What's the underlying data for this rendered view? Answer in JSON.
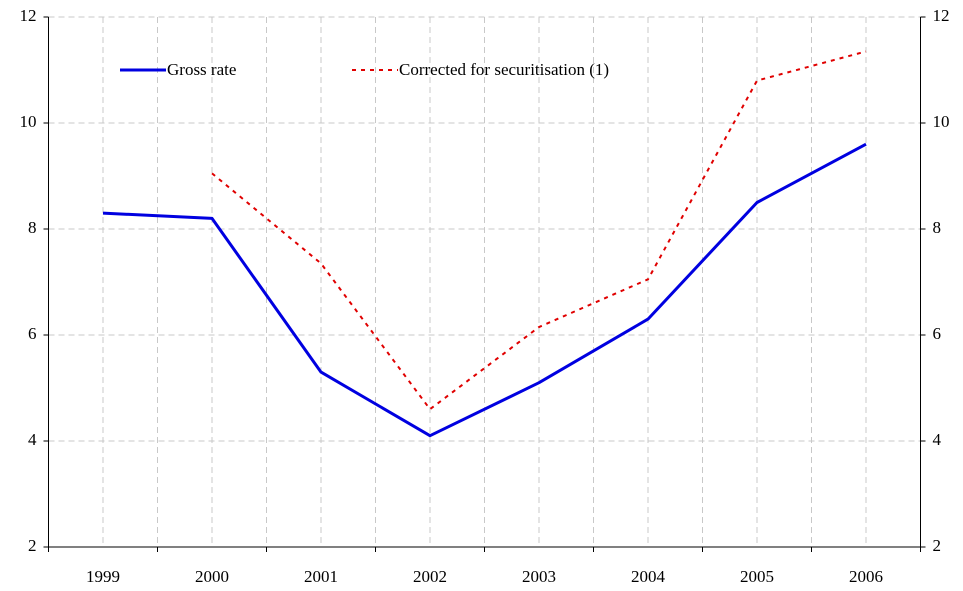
{
  "chart_data": {
    "type": "line",
    "categories": [
      "1999",
      "2000",
      "2001",
      "2002",
      "2003",
      "2004",
      "2005",
      "2006"
    ],
    "series": [
      {
        "name": "Gross rate",
        "color": "#0000e0",
        "style": "solid",
        "values": [
          8.3,
          8.2,
          5.3,
          4.1,
          5.1,
          6.3,
          8.5,
          9.6
        ]
      },
      {
        "name": "Corrected for securitisation (1)",
        "color": "#e00000",
        "style": "dotted",
        "values": [
          null,
          9.05,
          7.35,
          4.6,
          6.15,
          7.05,
          10.8,
          11.35
        ]
      }
    ],
    "ylim": [
      2,
      12
    ],
    "yticks": [
      2,
      4,
      6,
      8,
      10,
      12
    ],
    "y2lim": [
      2,
      12
    ],
    "y2ticks": [
      2,
      4,
      6,
      8,
      10,
      12
    ],
    "grid": true
  }
}
